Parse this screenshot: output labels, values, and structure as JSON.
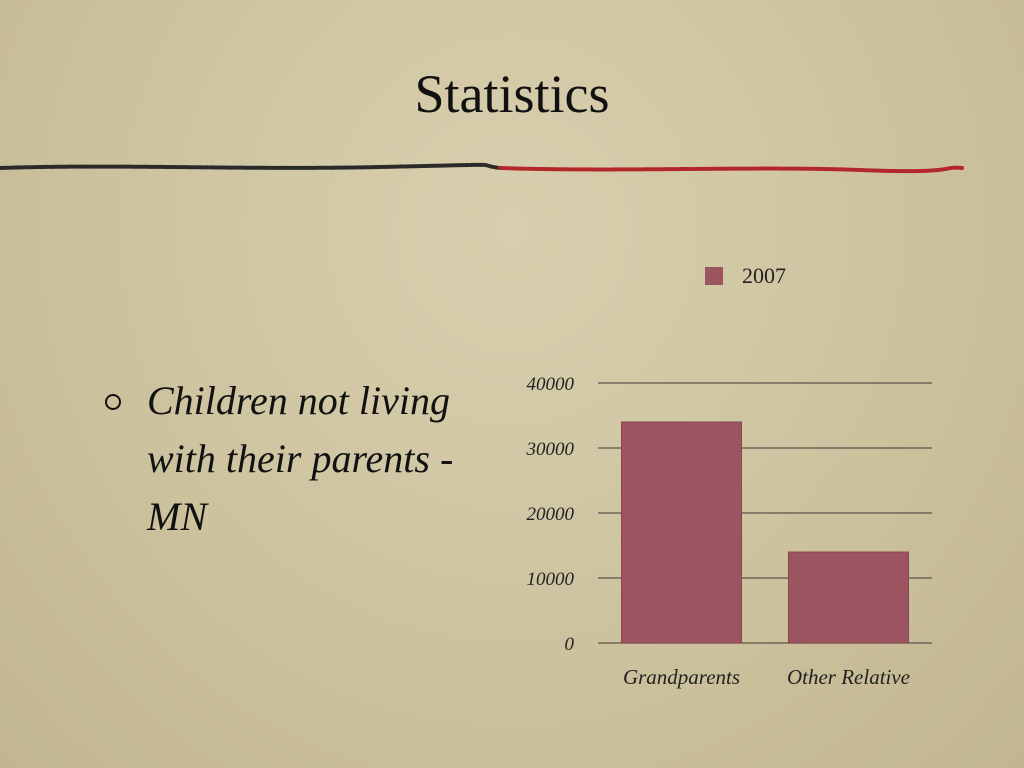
{
  "slide": {
    "title": "Statistics",
    "bullet": "Children not living with their parents - MN"
  },
  "colors": {
    "bar": "#9c5560",
    "bar_stroke": "#8a4550",
    "divider_dark": "#2a2a2a",
    "divider_red": "#b3262a",
    "grid": "#5a5448"
  },
  "chart_data": {
    "type": "bar",
    "categories": [
      "Grandparents",
      "Other Relative"
    ],
    "series": [
      {
        "name": "2007",
        "values": [
          34000,
          14000
        ]
      }
    ],
    "ylim": [
      0,
      40000
    ],
    "yticks": [
      "0",
      "10000",
      "20000",
      "30000",
      "40000"
    ],
    "grid": true,
    "legend": "top"
  }
}
